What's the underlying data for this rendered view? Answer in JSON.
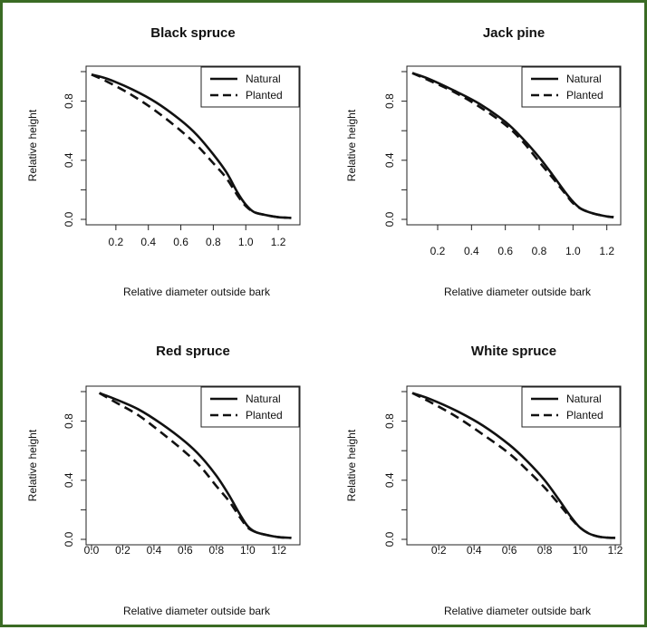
{
  "chart_data": [
    {
      "type": "line",
      "title": "Black spruce",
      "xlabel": "Relative diameter outside bark",
      "ylabel": "Relative height",
      "xlim": [
        0.05,
        1.3
      ],
      "ylim": [
        0.0,
        1.0
      ],
      "xticks": [
        "0.2",
        "0.4",
        "0.6",
        "0.8",
        "1.0",
        "1.2"
      ],
      "yticks": [
        "0.0",
        "0.4",
        "0.8"
      ],
      "legend": {
        "position": "top-right",
        "entries": [
          "Natural",
          "Planted"
        ]
      },
      "series": [
        {
          "name": "Natural",
          "style": "solid",
          "x": [
            0.05,
            0.15,
            0.3,
            0.45,
            0.6,
            0.7,
            0.8,
            0.88,
            0.95,
            1.0,
            1.05,
            1.12,
            1.2,
            1.28
          ],
          "y": [
            0.98,
            0.95,
            0.88,
            0.79,
            0.67,
            0.57,
            0.44,
            0.32,
            0.18,
            0.1,
            0.05,
            0.03,
            0.015,
            0.01
          ]
        },
        {
          "name": "Planted",
          "style": "dashed",
          "x": [
            0.05,
            0.15,
            0.3,
            0.45,
            0.6,
            0.7,
            0.8,
            0.88,
            0.95,
            1.0,
            1.05,
            1.12,
            1.2,
            1.28
          ],
          "y": [
            0.98,
            0.93,
            0.84,
            0.73,
            0.6,
            0.5,
            0.38,
            0.28,
            0.16,
            0.09,
            0.05,
            0.03,
            0.015,
            0.01
          ]
        }
      ]
    },
    {
      "type": "line",
      "title": "Jack pine",
      "xlabel": "Relative diameter outside bark",
      "ylabel": "Relative height",
      "xlim": [
        0.05,
        1.25
      ],
      "ylim": [
        0.0,
        1.0
      ],
      "xticks": [
        "0.2",
        "0.4",
        "0.6",
        "0.8",
        "1.0",
        "1.2"
      ],
      "yticks": [
        "0.0",
        "0.4",
        "0.8"
      ],
      "legend": {
        "position": "top-right",
        "entries": [
          "Natural",
          "Planted"
        ]
      },
      "series": [
        {
          "name": "Natural",
          "style": "solid",
          "x": [
            0.05,
            0.15,
            0.3,
            0.45,
            0.6,
            0.7,
            0.8,
            0.88,
            0.95,
            1.0,
            1.05,
            1.12,
            1.2,
            1.24
          ],
          "y": [
            0.99,
            0.95,
            0.87,
            0.78,
            0.66,
            0.55,
            0.42,
            0.3,
            0.19,
            0.12,
            0.07,
            0.04,
            0.02,
            0.015
          ]
        },
        {
          "name": "Planted",
          "style": "dashed",
          "x": [
            0.05,
            0.15,
            0.3,
            0.45,
            0.6,
            0.7,
            0.8,
            0.88,
            0.95,
            1.0,
            1.05,
            1.12,
            1.2,
            1.24
          ],
          "y": [
            0.99,
            0.94,
            0.86,
            0.76,
            0.64,
            0.53,
            0.39,
            0.28,
            0.18,
            0.11,
            0.07,
            0.04,
            0.02,
            0.015
          ]
        }
      ]
    },
    {
      "type": "line",
      "title": "Red spruce",
      "xlabel": "Relative diameter outside bark",
      "ylabel": "Relative height",
      "xlim": [
        0.0,
        1.3
      ],
      "ylim": [
        0.0,
        1.0
      ],
      "xticks": [
        "0.0",
        "0.2",
        "0.4",
        "0.6",
        "0.8",
        "1.0",
        "1.2"
      ],
      "yticks": [
        "0.0",
        "0.4",
        "0.8"
      ],
      "legend": {
        "position": "top-right",
        "entries": [
          "Natural",
          "Planted"
        ]
      },
      "series": [
        {
          "name": "Natural",
          "style": "solid",
          "x": [
            0.05,
            0.15,
            0.3,
            0.45,
            0.6,
            0.7,
            0.8,
            0.88,
            0.95,
            1.0,
            1.05,
            1.12,
            1.2,
            1.28
          ],
          "y": [
            0.99,
            0.95,
            0.88,
            0.78,
            0.66,
            0.56,
            0.43,
            0.3,
            0.17,
            0.09,
            0.05,
            0.03,
            0.015,
            0.01
          ]
        },
        {
          "name": "Planted",
          "style": "dashed",
          "x": [
            0.05,
            0.15,
            0.3,
            0.45,
            0.6,
            0.7,
            0.8,
            0.88,
            0.95,
            1.0,
            1.05,
            1.12,
            1.2,
            1.28
          ],
          "y": [
            0.99,
            0.93,
            0.84,
            0.72,
            0.59,
            0.49,
            0.36,
            0.26,
            0.15,
            0.08,
            0.05,
            0.03,
            0.015,
            0.01
          ]
        }
      ]
    },
    {
      "type": "line",
      "title": "White spruce",
      "xlabel": "Relative diameter outside bark",
      "ylabel": "Relative height",
      "xlim": [
        0.05,
        1.2
      ],
      "ylim": [
        0.0,
        1.0
      ],
      "xticks": [
        "0.2",
        "0.4",
        "0.6",
        "0.8",
        "1.0",
        "1.2"
      ],
      "yticks": [
        "0.0",
        "0.4",
        "0.8"
      ],
      "legend": {
        "position": "top-right",
        "entries": [
          "Natural",
          "Planted"
        ]
      },
      "series": [
        {
          "name": "Natural",
          "style": "solid",
          "x": [
            0.05,
            0.15,
            0.3,
            0.45,
            0.6,
            0.7,
            0.8,
            0.88,
            0.95,
            1.0,
            1.05,
            1.1,
            1.15,
            1.2
          ],
          "y": [
            0.99,
            0.95,
            0.87,
            0.77,
            0.64,
            0.53,
            0.4,
            0.27,
            0.15,
            0.08,
            0.04,
            0.02,
            0.012,
            0.01
          ]
        },
        {
          "name": "Planted",
          "style": "dashed",
          "x": [
            0.05,
            0.15,
            0.3,
            0.45,
            0.6,
            0.7,
            0.8,
            0.88,
            0.95,
            1.0,
            1.05,
            1.1,
            1.15,
            1.2
          ],
          "y": [
            0.99,
            0.93,
            0.83,
            0.71,
            0.58,
            0.47,
            0.35,
            0.24,
            0.14,
            0.08,
            0.04,
            0.02,
            0.012,
            0.01
          ]
        }
      ]
    }
  ]
}
